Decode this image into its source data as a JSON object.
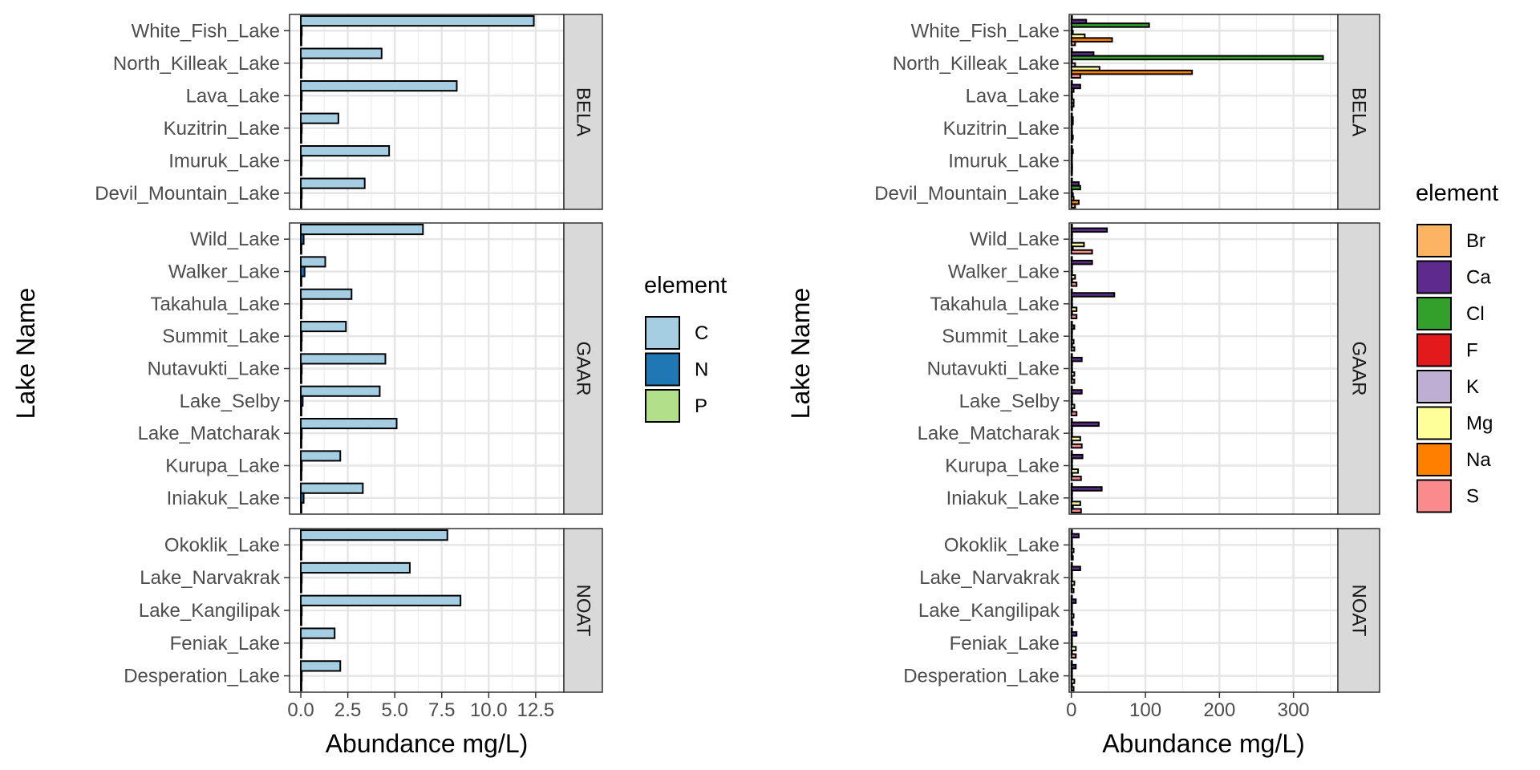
{
  "chart_data": [
    {
      "type": "bar",
      "orientation": "horizontal",
      "xlabel": "Abundance mg/L)",
      "ylabel": "Lake Name",
      "xlim": [
        -0.6,
        14.0
      ],
      "xticks": [
        0,
        2.5,
        5,
        7.5,
        10,
        12.5
      ],
      "xtick_labels": [
        "0.0",
        "2.5",
        "5.0",
        "7.5",
        "10.0",
        "12.5"
      ],
      "grid": true,
      "legend": {
        "title": "element",
        "placement": "right",
        "entries": [
          {
            "name": "C",
            "color": "#A6CEE3"
          },
          {
            "name": "N",
            "color": "#1F78B4"
          },
          {
            "name": "P",
            "color": "#B2DF8A"
          }
        ]
      },
      "panels": [
        {
          "strip": "BELA",
          "lakes": [
            "White_Fish_Lake",
            "North_Killeak_Lake",
            "Lava_Lake",
            "Kuzitrin_Lake",
            "Imuruk_Lake",
            "Devil_Mountain_Lake"
          ],
          "series": [
            {
              "name": "C",
              "values": [
                12.4,
                4.3,
                8.3,
                2.0,
                4.7,
                3.4
              ]
            },
            {
              "name": "N",
              "values": [
                0.05,
                0.05,
                0.05,
                0.05,
                0.05,
                0.05
              ]
            },
            {
              "name": "P",
              "values": [
                0.01,
                0.01,
                0.01,
                0.01,
                0.01,
                0.01
              ]
            }
          ]
        },
        {
          "strip": "GAAR",
          "lakes": [
            "Wild_Lake",
            "Walker_Lake",
            "Takahula_Lake",
            "Summit_Lake",
            "Nutavukti_Lake",
            "Lake_Selby",
            "Lake_Matcharak",
            "Kurupa_Lake",
            "Iniakuk_Lake"
          ],
          "series": [
            {
              "name": "C",
              "values": [
                6.5,
                1.3,
                2.7,
                2.4,
                4.5,
                4.2,
                5.1,
                2.1,
                3.3
              ]
            },
            {
              "name": "N",
              "values": [
                0.15,
                0.2,
                0.05,
                0.05,
                0.05,
                0.1,
                0.05,
                0.05,
                0.15
              ]
            },
            {
              "name": "P",
              "values": [
                0.01,
                0.01,
                0.01,
                0.01,
                0.01,
                0.01,
                0.01,
                0.01,
                0.01
              ]
            }
          ]
        },
        {
          "strip": "NOAT",
          "lakes": [
            "Okoklik_Lake",
            "Lake_Narvakrak",
            "Lake_Kangilipak",
            "Feniak_Lake",
            "Desperation_Lake"
          ],
          "series": [
            {
              "name": "C",
              "values": [
                7.8,
                5.8,
                8.5,
                1.8,
                2.1
              ]
            },
            {
              "name": "N",
              "values": [
                0.05,
                0.05,
                0.05,
                0.05,
                0.05
              ]
            },
            {
              "name": "P",
              "values": [
                0.01,
                0.01,
                0.01,
                0.01,
                0.01
              ]
            }
          ]
        }
      ]
    },
    {
      "type": "bar",
      "orientation": "horizontal",
      "xlabel": "Abundance mg/L)",
      "ylabel": "Lake Name",
      "xlim": [
        -3,
        360
      ],
      "xticks": [
        0,
        100,
        200,
        300
      ],
      "xtick_labels": [
        "0",
        "100",
        "200",
        "300"
      ],
      "grid": true,
      "legend": {
        "title": "element",
        "placement": "right",
        "entries": [
          {
            "name": "Br",
            "color": "#FDB462"
          },
          {
            "name": "Ca",
            "color": "#5E2A8C"
          },
          {
            "name": "Cl",
            "color": "#33A02C"
          },
          {
            "name": "F",
            "color": "#E31A1C"
          },
          {
            "name": "K",
            "color": "#BEAED4"
          },
          {
            "name": "Mg",
            "color": "#FFFF99"
          },
          {
            "name": "Na",
            "color": "#FF7F00"
          },
          {
            "name": "S",
            "color": "#FB8A8C"
          }
        ]
      },
      "panels": [
        {
          "strip": "BELA",
          "lakes": [
            "White_Fish_Lake",
            "North_Killeak_Lake",
            "Lava_Lake",
            "Kuzitrin_Lake",
            "Imuruk_Lake",
            "Devil_Mountain_Lake"
          ],
          "series": [
            {
              "name": "Br",
              "values": [
                0.3,
                0.5,
                0.1,
                0.1,
                0.1,
                0.1
              ]
            },
            {
              "name": "Ca",
              "values": [
                20,
                30,
                12,
                2,
                2,
                10
              ]
            },
            {
              "name": "Cl",
              "values": [
                105,
                340,
                3,
                2,
                1,
                12
              ]
            },
            {
              "name": "F",
              "values": [
                0.1,
                0.1,
                0.1,
                0.1,
                0.1,
                0.1
              ]
            },
            {
              "name": "K",
              "values": [
                2,
                5,
                1,
                0.5,
                0.5,
                2
              ]
            },
            {
              "name": "Mg",
              "values": [
                18,
                38,
                3,
                1,
                1,
                3
              ]
            },
            {
              "name": "Na",
              "values": [
                55,
                163,
                3,
                2,
                1,
                10
              ]
            },
            {
              "name": "S",
              "values": [
                5,
                12,
                1,
                0.5,
                0.5,
                5
              ]
            }
          ]
        },
        {
          "strip": "GAAR",
          "lakes": [
            "Wild_Lake",
            "Walker_Lake",
            "Takahula_Lake",
            "Summit_Lake",
            "Nutavukti_Lake",
            "Lake_Selby",
            "Lake_Matcharak",
            "Kurupa_Lake",
            "Iniakuk_Lake"
          ],
          "series": [
            {
              "name": "Br",
              "values": [
                0.1,
                0.1,
                0.1,
                0.1,
                0.1,
                0.1,
                0.1,
                0.1,
                0.1
              ]
            },
            {
              "name": "Ca",
              "values": [
                48,
                28,
                58,
                4,
                14,
                14,
                37,
                15,
                41
              ]
            },
            {
              "name": "Cl",
              "values": [
                1,
                1,
                1,
                1,
                1,
                1,
                1,
                1,
                1
              ]
            },
            {
              "name": "F",
              "values": [
                0.1,
                0.1,
                0.1,
                0.1,
                0.1,
                0.1,
                0.1,
                0.1,
                0.1
              ]
            },
            {
              "name": "K",
              "values": [
                1,
                1,
                1,
                0.5,
                1,
                1,
                1,
                1,
                1
              ]
            },
            {
              "name": "Mg",
              "values": [
                17,
                5,
                7,
                3,
                4,
                4,
                12,
                9,
                12
              ]
            },
            {
              "name": "Na",
              "values": [
                2,
                1,
                1,
                1,
                1,
                1,
                1,
                1,
                2
              ]
            },
            {
              "name": "S",
              "values": [
                28,
                7,
                7,
                4,
                4,
                7,
                14,
                13,
                13
              ]
            }
          ]
        },
        {
          "strip": "NOAT",
          "lakes": [
            "Okoklik_Lake",
            "Lake_Narvakrak",
            "Lake_Kangilipak",
            "Feniak_Lake",
            "Desperation_Lake"
          ],
          "series": [
            {
              "name": "Br",
              "values": [
                0.1,
                0.1,
                0.1,
                0.1,
                0.1
              ]
            },
            {
              "name": "Ca",
              "values": [
                10,
                12,
                6,
                7,
                6
              ]
            },
            {
              "name": "Cl",
              "values": [
                0.5,
                0.5,
                0.5,
                0.5,
                0.5
              ]
            },
            {
              "name": "F",
              "values": [
                0.1,
                0.1,
                0.1,
                0.1,
                0.1
              ]
            },
            {
              "name": "K",
              "values": [
                0.5,
                0.5,
                0.5,
                0.5,
                0.5
              ]
            },
            {
              "name": "Mg",
              "values": [
                3,
                4,
                3,
                6,
                4
              ]
            },
            {
              "name": "Na",
              "values": [
                0.5,
                0.5,
                0.5,
                0.5,
                0.5
              ]
            },
            {
              "name": "S",
              "values": [
                2,
                3,
                2,
                6,
                3
              ]
            }
          ]
        }
      ]
    }
  ]
}
